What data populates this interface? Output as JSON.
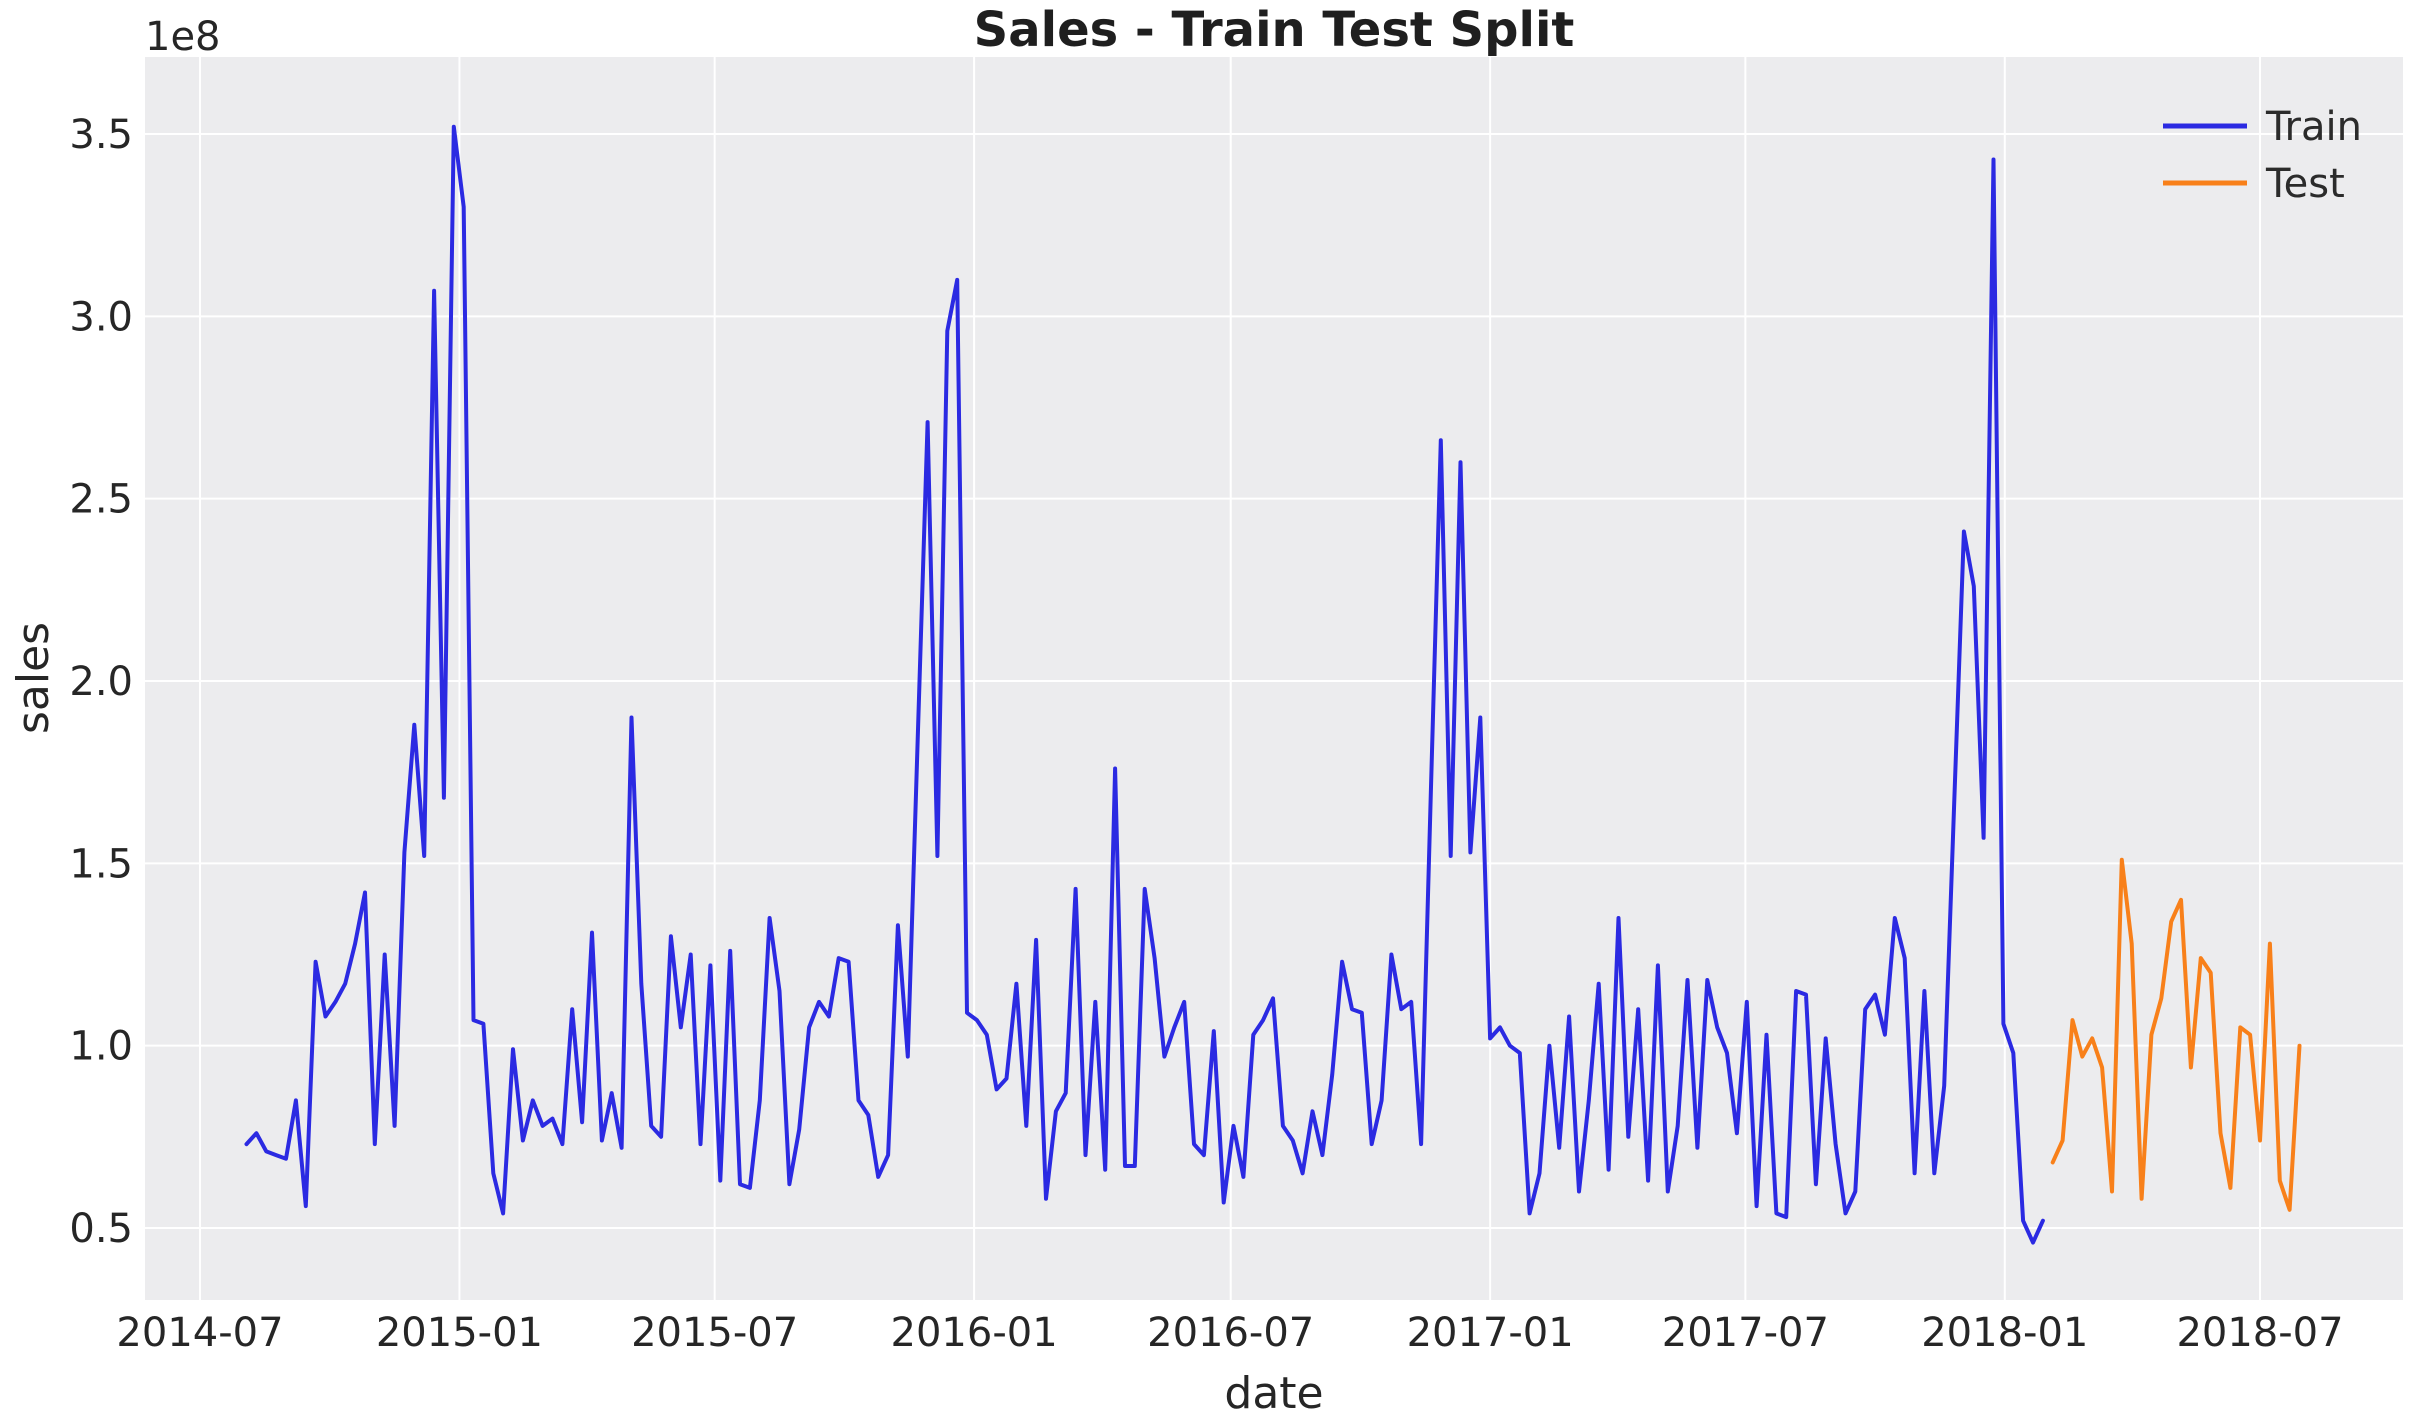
{
  "style": {
    "figure_bg": "#ffffff",
    "axes_bg": "#ececee",
    "grid_color": "#ffffff",
    "text_color": "#262626",
    "train_color": "#2b2ae2",
    "test_color": "#f8801a"
  },
  "chart_data": {
    "type": "line",
    "title": "Sales - Train Test Split",
    "xlabel": "date",
    "ylabel": "sales",
    "offset_text": "1e8",
    "grid": true,
    "legend_position": "upper right",
    "ylim": [
      0.3,
      3.71
    ],
    "y_unit_multiplier": 100000000,
    "y_ticks": [
      0.5,
      1.0,
      1.5,
      2.0,
      2.5,
      3.0,
      3.5
    ],
    "y_tick_labels": [
      "0.5",
      "1.0",
      "1.5",
      "2.0",
      "2.5",
      "3.0",
      "3.5"
    ],
    "x_tick_dates": [
      "2014-07-01",
      "2015-01-01",
      "2015-07-01",
      "2016-01-01",
      "2016-07-01",
      "2017-01-01",
      "2017-07-01",
      "2018-01-01",
      "2018-07-01"
    ],
    "x_tick_labels": [
      "2014-07",
      "2015-01",
      "2015-07",
      "2016-01",
      "2016-07",
      "2017-01",
      "2017-07",
      "2018-01",
      "2018-07"
    ],
    "xlim_dates": [
      "2014-05-23",
      "2018-10-10"
    ],
    "frequency": "weekly",
    "series": [
      {
        "name": "Train",
        "color": "#2b2ae2",
        "start_date": "2014-08-03",
        "values": [
          0.73,
          0.76,
          0.71,
          0.7,
          0.69,
          0.85,
          0.56,
          1.23,
          1.08,
          1.12,
          1.17,
          1.28,
          1.42,
          0.73,
          1.25,
          0.78,
          1.53,
          1.88,
          1.52,
          3.07,
          1.68,
          3.52,
          3.3,
          1.07,
          1.06,
          0.65,
          0.54,
          0.99,
          0.74,
          0.85,
          0.78,
          0.8,
          0.73,
          1.1,
          0.79,
          1.31,
          0.74,
          0.87,
          0.72,
          1.9,
          1.17,
          0.78,
          0.75,
          1.3,
          1.05,
          1.25,
          0.73,
          1.22,
          0.63,
          1.26,
          0.62,
          0.61,
          0.85,
          1.35,
          1.15,
          0.62,
          0.77,
          1.05,
          1.12,
          1.08,
          1.24,
          1.23,
          0.85,
          0.81,
          0.64,
          0.7,
          1.33,
          0.97,
          1.84,
          2.71,
          1.52,
          2.96,
          3.1,
          1.09,
          1.07,
          1.03,
          0.88,
          0.91,
          1.17,
          0.78,
          1.29,
          0.58,
          0.82,
          0.87,
          1.43,
          0.7,
          1.12,
          0.66,
          1.76,
          0.67,
          0.67,
          1.43,
          1.24,
          0.97,
          1.05,
          1.12,
          0.73,
          0.7,
          1.04,
          0.57,
          0.78,
          0.64,
          1.03,
          1.07,
          1.13,
          0.78,
          0.74,
          0.65,
          0.82,
          0.7,
          0.92,
          1.23,
          1.1,
          1.09,
          0.73,
          0.85,
          1.25,
          1.1,
          1.12,
          0.73,
          1.7,
          2.66,
          1.52,
          2.6,
          1.53,
          1.9,
          1.02,
          1.05,
          1.0,
          0.98,
          0.54,
          0.65,
          1.0,
          0.72,
          1.08,
          0.6,
          0.85,
          1.17,
          0.66,
          1.35,
          0.75,
          1.1,
          0.63,
          1.22,
          0.6,
          0.78,
          1.18,
          0.72,
          1.18,
          1.05,
          0.98,
          0.76,
          1.12,
          0.56,
          1.03,
          0.54,
          0.53,
          1.15,
          1.14,
          0.62,
          1.02,
          0.73,
          0.54,
          0.6,
          1.1,
          1.14,
          1.03,
          1.35,
          1.24,
          0.65,
          1.15,
          0.65,
          0.89,
          1.65,
          2.41,
          2.26,
          1.57,
          3.43,
          1.06,
          0.98,
          0.52,
          0.46,
          0.52
        ]
      },
      {
        "name": "Test",
        "color": "#f8801a",
        "start_date": "2018-02-04",
        "values": [
          0.68,
          0.74,
          1.07,
          0.97,
          1.02,
          0.94,
          0.6,
          1.51,
          1.28,
          0.58,
          1.03,
          1.13,
          1.34,
          1.4,
          0.94,
          1.24,
          1.2,
          0.76,
          0.61,
          1.05,
          1.03,
          0.74,
          1.28,
          0.63,
          0.55,
          1.0
        ]
      }
    ]
  }
}
